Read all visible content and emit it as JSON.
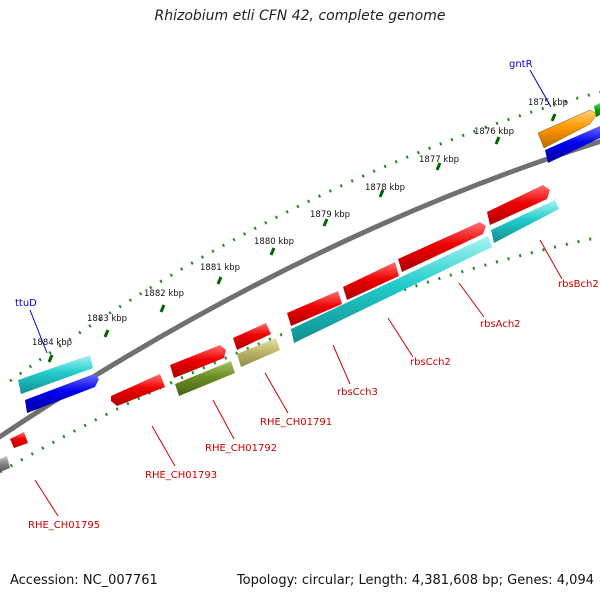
{
  "title": "Rhizobium etli CFN 42, complete genome",
  "accession": "Accession: NC_007761",
  "summary": "Topology: circular; Length: 4,381,608 bp; Genes: 4,094",
  "ticks": [
    "1875 kbp",
    "1876 kbp",
    "1877 kbp",
    "1878 kbp",
    "1879 kbp",
    "1880 kbp",
    "1881 kbp",
    "1882 kbp",
    "1883 kbp",
    "1884 kbp"
  ],
  "gene_labels": [
    {
      "id": "gntR",
      "text": "gntR",
      "color": "#0000cc"
    },
    {
      "id": "ttuD",
      "text": "ttuD",
      "color": "#0000cc"
    },
    {
      "id": "rbsBch2",
      "text": "rbsBch2",
      "color": "#cc0000"
    },
    {
      "id": "rbsAch2",
      "text": "rbsAch2",
      "color": "#cc0000"
    },
    {
      "id": "rbsCch2",
      "text": "rbsCch2",
      "color": "#cc0000"
    },
    {
      "id": "rbsCch3",
      "text": "rbsCch3",
      "color": "#cc0000"
    },
    {
      "id": "RHE_CH01791",
      "text": "RHE_CH01791",
      "color": "#cc0000"
    },
    {
      "id": "RHE_CH01792",
      "text": "RHE_CH01792",
      "color": "#cc0000"
    },
    {
      "id": "RHE_CH01793",
      "text": "RHE_CH01793",
      "color": "#cc0000"
    },
    {
      "id": "RHE_CH01795",
      "text": "RHE_CH01795",
      "color": "#cc0000"
    }
  ],
  "colors": {
    "red": "#ee0000",
    "cyan": "#22cccc",
    "blue": "#0000ee",
    "orange": "#ff9900",
    "green": "#00aa00",
    "olive": "#6b8e23",
    "khaki": "#bdb76b",
    "backbone": "#7a7a7a",
    "tick": "#006400"
  }
}
